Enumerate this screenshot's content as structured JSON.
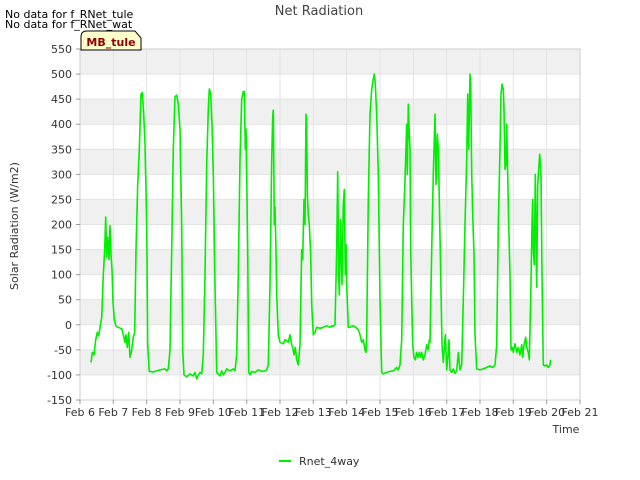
{
  "notes": {
    "no_data_1": "No data for f_RNet_tule",
    "no_data_2": "No data for f_RNet_wat"
  },
  "site_label": "MB_tule",
  "colors": {
    "series": "#00ee00",
    "band": "#f0f0f0",
    "frame": "#cccccc",
    "site_bg": "#ffffcc"
  },
  "chart_data": {
    "type": "line",
    "title": "Net Radiation",
    "xlabel": "Time",
    "ylabel": "Solar Radiation (W/m2)",
    "ylim": [
      -150,
      550
    ],
    "yticks": [
      -150,
      -100,
      -50,
      0,
      50,
      100,
      150,
      200,
      250,
      300,
      350,
      400,
      450,
      500,
      550
    ],
    "xlim": [
      6,
      21
    ],
    "xticks": [
      6,
      7,
      8,
      9,
      10,
      11,
      12,
      13,
      14,
      15,
      16,
      17,
      18,
      19,
      20,
      21
    ],
    "xticklabels": [
      "Feb 6",
      "Feb 7",
      "Feb 8",
      "Feb 9",
      "Feb 10",
      "Feb 11",
      "Feb 12",
      "Feb 13",
      "Feb 14",
      "Feb 15",
      "Feb 16",
      "Feb 17",
      "Feb 18",
      "Feb 19",
      "Feb 20",
      "Feb 21"
    ],
    "legend": "bottom-center",
    "series": [
      {
        "name": "Rnet_4way",
        "points": [
          [
            6.33,
            -75
          ],
          [
            6.37,
            -55
          ],
          [
            6.42,
            -60
          ],
          [
            6.47,
            -30
          ],
          [
            6.52,
            -15
          ],
          [
            6.56,
            -22
          ],
          [
            6.6,
            -5
          ],
          [
            6.65,
            15
          ],
          [
            6.7,
            100
          ],
          [
            6.74,
            150
          ],
          [
            6.77,
            215
          ],
          [
            6.8,
            135
          ],
          [
            6.83,
            175
          ],
          [
            6.87,
            130
          ],
          [
            6.9,
            198
          ],
          [
            6.93,
            140
          ],
          [
            6.96,
            110
          ],
          [
            6.99,
            45
          ],
          [
            7.03,
            10
          ],
          [
            7.08,
            -3
          ],
          [
            7.15,
            -5
          ],
          [
            7.25,
            -8
          ],
          [
            7.3,
            -20
          ],
          [
            7.35,
            -35
          ],
          [
            7.38,
            -20
          ],
          [
            7.42,
            -45
          ],
          [
            7.46,
            -15
          ],
          [
            7.5,
            -65
          ],
          [
            7.55,
            -50
          ],
          [
            7.6,
            -25
          ],
          [
            7.64,
            -15
          ],
          [
            7.68,
            150
          ],
          [
            7.73,
            280
          ],
          [
            7.78,
            350
          ],
          [
            7.83,
            460
          ],
          [
            7.87,
            463
          ],
          [
            7.91,
            420
          ],
          [
            7.95,
            360
          ],
          [
            8.0,
            200
          ],
          [
            8.03,
            -40
          ],
          [
            8.08,
            -93
          ],
          [
            8.2,
            -94
          ],
          [
            8.4,
            -90
          ],
          [
            8.55,
            -88
          ],
          [
            8.6,
            -92
          ],
          [
            8.65,
            -88
          ],
          [
            8.7,
            -50
          ],
          [
            8.75,
            150
          ],
          [
            8.8,
            350
          ],
          [
            8.85,
            455
          ],
          [
            8.9,
            458
          ],
          [
            8.95,
            440
          ],
          [
            9.0,
            390
          ],
          [
            9.05,
            200
          ],
          [
            9.08,
            -50
          ],
          [
            9.12,
            -100
          ],
          [
            9.2,
            -104
          ],
          [
            9.3,
            -98
          ],
          [
            9.4,
            -102
          ],
          [
            9.45,
            -95
          ],
          [
            9.5,
            -108
          ],
          [
            9.55,
            -100
          ],
          [
            9.6,
            -95
          ],
          [
            9.65,
            -98
          ],
          [
            9.7,
            -60
          ],
          [
            9.75,
            100
          ],
          [
            9.8,
            320
          ],
          [
            9.85,
            430
          ],
          [
            9.88,
            470
          ],
          [
            9.92,
            460
          ],
          [
            9.96,
            400
          ],
          [
            10.0,
            300
          ],
          [
            10.05,
            80
          ],
          [
            10.1,
            -95
          ],
          [
            10.2,
            -102
          ],
          [
            10.25,
            -92
          ],
          [
            10.3,
            -100
          ],
          [
            10.35,
            -95
          ],
          [
            10.4,
            -88
          ],
          [
            10.5,
            -92
          ],
          [
            10.6,
            -88
          ],
          [
            10.65,
            -92
          ],
          [
            10.7,
            -60
          ],
          [
            10.75,
            100
          ],
          [
            10.8,
            330
          ],
          [
            10.85,
            450
          ],
          [
            10.9,
            465
          ],
          [
            10.93,
            465
          ],
          [
            10.96,
            350
          ],
          [
            10.98,
            390
          ],
          [
            11.0,
            300
          ],
          [
            11.03,
            150
          ],
          [
            11.06,
            -95
          ],
          [
            11.1,
            -100
          ],
          [
            11.15,
            -93
          ],
          [
            11.25,
            -95
          ],
          [
            11.35,
            -90
          ],
          [
            11.45,
            -93
          ],
          [
            11.55,
            -92
          ],
          [
            11.6,
            -90
          ],
          [
            11.65,
            -80
          ],
          [
            11.7,
            80
          ],
          [
            11.75,
            330
          ],
          [
            11.78,
            415
          ],
          [
            11.8,
            428
          ],
          [
            11.83,
            200
          ],
          [
            11.85,
            235
          ],
          [
            11.88,
            150
          ],
          [
            11.9,
            60
          ],
          [
            11.95,
            -20
          ],
          [
            12.0,
            -35
          ],
          [
            12.1,
            -38
          ],
          [
            12.15,
            -30
          ],
          [
            12.2,
            -32
          ],
          [
            12.25,
            -35
          ],
          [
            12.3,
            -20
          ],
          [
            12.35,
            -40
          ],
          [
            12.38,
            -45
          ],
          [
            12.42,
            -60
          ],
          [
            12.46,
            -45
          ],
          [
            12.5,
            -70
          ],
          [
            12.55,
            -80
          ],
          [
            12.6,
            -40
          ],
          [
            12.65,
            150
          ],
          [
            12.68,
            130
          ],
          [
            12.72,
            250
          ],
          [
            12.75,
            200
          ],
          [
            12.78,
            420
          ],
          [
            12.8,
            400
          ],
          [
            12.82,
            260
          ],
          [
            12.85,
            220
          ],
          [
            12.88,
            200
          ],
          [
            12.92,
            140
          ],
          [
            12.95,
            40
          ],
          [
            13.0,
            -20
          ],
          [
            13.05,
            -15
          ],
          [
            13.1,
            -5
          ],
          [
            13.2,
            -7
          ],
          [
            13.3,
            -5
          ],
          [
            13.4,
            -2
          ],
          [
            13.5,
            -5
          ],
          [
            13.55,
            -2
          ],
          [
            13.6,
            -3
          ],
          [
            13.65,
            0
          ],
          [
            13.7,
            150
          ],
          [
            13.73,
            305
          ],
          [
            13.76,
            100
          ],
          [
            13.78,
            60
          ],
          [
            13.82,
            210
          ],
          [
            13.86,
            80
          ],
          [
            13.9,
            240
          ],
          [
            13.93,
            270
          ],
          [
            13.96,
            100
          ],
          [
            13.98,
            160
          ],
          [
            14.0,
            80
          ],
          [
            14.05,
            -5
          ],
          [
            14.1,
            -5
          ],
          [
            14.15,
            -3
          ],
          [
            14.2,
            -2
          ],
          [
            14.28,
            -5
          ],
          [
            14.35,
            -10
          ],
          [
            14.4,
            -20
          ],
          [
            14.45,
            -35
          ],
          [
            14.5,
            -30
          ],
          [
            14.55,
            -50
          ],
          [
            14.58,
            -55
          ],
          [
            14.6,
            -20
          ],
          [
            14.65,
            250
          ],
          [
            14.7,
            420
          ],
          [
            14.75,
            470
          ],
          [
            14.8,
            490
          ],
          [
            14.83,
            500
          ],
          [
            14.86,
            480
          ],
          [
            14.9,
            420
          ],
          [
            14.95,
            300
          ],
          [
            15.0,
            50
          ],
          [
            15.05,
            -95
          ],
          [
            15.1,
            -98
          ],
          [
            15.2,
            -95
          ],
          [
            15.3,
            -93
          ],
          [
            15.4,
            -92
          ],
          [
            15.5,
            -85
          ],
          [
            15.55,
            -90
          ],
          [
            15.6,
            -80
          ],
          [
            15.65,
            -30
          ],
          [
            15.7,
            200
          ],
          [
            15.75,
            290
          ],
          [
            15.8,
            400
          ],
          [
            15.82,
            300
          ],
          [
            15.85,
            440
          ],
          [
            15.88,
            380
          ],
          [
            15.9,
            350
          ],
          [
            15.92,
            150
          ],
          [
            15.95,
            50
          ],
          [
            15.98,
            -40
          ],
          [
            16.02,
            -65
          ],
          [
            16.06,
            -70
          ],
          [
            16.1,
            -55
          ],
          [
            16.14,
            -65
          ],
          [
            16.18,
            -55
          ],
          [
            16.22,
            -65
          ],
          [
            16.25,
            -55
          ],
          [
            16.3,
            -70
          ],
          [
            16.35,
            -60
          ],
          [
            16.4,
            -40
          ],
          [
            16.45,
            -50
          ],
          [
            16.48,
            -30
          ],
          [
            16.5,
            -35
          ],
          [
            16.55,
            150
          ],
          [
            16.6,
            300
          ],
          [
            16.65,
            420
          ],
          [
            16.68,
            280
          ],
          [
            16.72,
            380
          ],
          [
            16.75,
            350
          ],
          [
            16.78,
            250
          ],
          [
            16.82,
            100
          ],
          [
            16.86,
            -40
          ],
          [
            16.9,
            -75
          ],
          [
            16.93,
            -45
          ],
          [
            16.96,
            -20
          ],
          [
            17.0,
            -90
          ],
          [
            17.04,
            -60
          ],
          [
            17.07,
            -30
          ],
          [
            17.1,
            -90
          ],
          [
            17.15,
            -95
          ],
          [
            17.2,
            -88
          ],
          [
            17.25,
            -97
          ],
          [
            17.3,
            -92
          ],
          [
            17.35,
            -55
          ],
          [
            17.4,
            -90
          ],
          [
            17.45,
            -80
          ],
          [
            17.5,
            50
          ],
          [
            17.55,
            200
          ],
          [
            17.6,
            330
          ],
          [
            17.63,
            460
          ],
          [
            17.66,
            350
          ],
          [
            17.7,
            500
          ],
          [
            17.72,
            480
          ],
          [
            17.75,
            300
          ],
          [
            17.78,
            220
          ],
          [
            17.82,
            140
          ],
          [
            17.85,
            -20
          ],
          [
            17.9,
            -88
          ],
          [
            18.0,
            -90
          ],
          [
            18.1,
            -88
          ],
          [
            18.2,
            -85
          ],
          [
            18.3,
            -82
          ],
          [
            18.38,
            -85
          ],
          [
            18.45,
            -80
          ],
          [
            18.5,
            -40
          ],
          [
            18.55,
            200
          ],
          [
            18.6,
            350
          ],
          [
            18.63,
            460
          ],
          [
            18.66,
            480
          ],
          [
            18.7,
            470
          ],
          [
            18.72,
            430
          ],
          [
            18.75,
            310
          ],
          [
            18.78,
            320
          ],
          [
            18.8,
            400
          ],
          [
            18.83,
            300
          ],
          [
            18.86,
            200
          ],
          [
            18.9,
            100
          ],
          [
            18.93,
            -50
          ],
          [
            18.97,
            -45
          ],
          [
            19.0,
            -55
          ],
          [
            19.05,
            -38
          ],
          [
            19.1,
            -55
          ],
          [
            19.15,
            -45
          ],
          [
            19.2,
            -60
          ],
          [
            19.25,
            -40
          ],
          [
            19.28,
            -65
          ],
          [
            19.32,
            -40
          ],
          [
            19.37,
            -25
          ],
          [
            19.4,
            -45
          ],
          [
            19.45,
            -55
          ],
          [
            19.48,
            -70
          ],
          [
            19.52,
            50
          ],
          [
            19.56,
            200
          ],
          [
            19.58,
            250
          ],
          [
            19.6,
            150
          ],
          [
            19.63,
            120
          ],
          [
            19.66,
            300
          ],
          [
            19.7,
            75
          ],
          [
            19.73,
            280
          ],
          [
            19.76,
            310
          ],
          [
            19.79,
            340
          ],
          [
            19.83,
            300
          ],
          [
            19.86,
            100
          ],
          [
            19.9,
            -80
          ],
          [
            19.95,
            -82
          ],
          [
            20.0,
            -80
          ],
          [
            20.05,
            -85
          ],
          [
            20.1,
            -80
          ],
          [
            20.12,
            -70
          ]
        ]
      }
    ]
  }
}
